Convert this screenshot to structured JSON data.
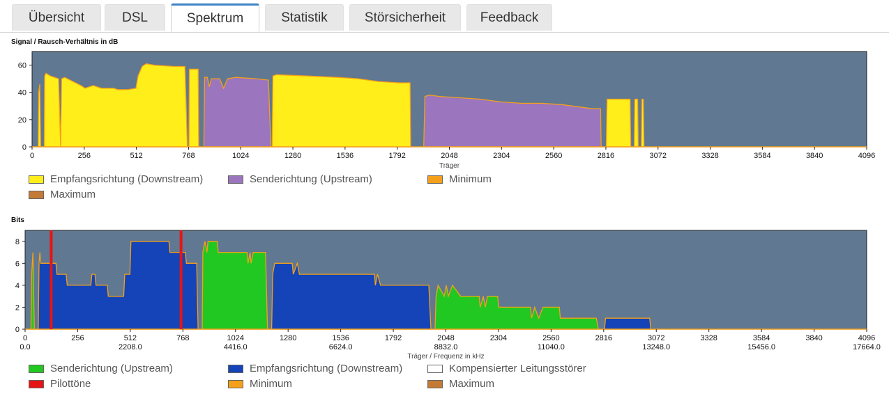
{
  "tabs": [
    {
      "label": "Übersicht",
      "active": false
    },
    {
      "label": "DSL",
      "active": false
    },
    {
      "label": "Spektrum",
      "active": true
    },
    {
      "label": "Statistik",
      "active": false
    },
    {
      "label": "Störsicherheit",
      "active": false
    },
    {
      "label": "Feedback",
      "active": false
    }
  ],
  "colors": {
    "plot_bg": "#607891",
    "downstream_snr": "#ffee1a",
    "upstream_snr": "#9b75bd",
    "minimum": "#f5a01a",
    "maximum": "#c47a36",
    "bits_up": "#21c821",
    "bits_down": "#1444b8",
    "pilot": "#e61414",
    "compensated": "#ffffff"
  },
  "chart_data": [
    {
      "type": "area",
      "title": "Signal / Rausch-Verhältnis in dB",
      "xlabel": "Träger",
      "xlim": [
        0,
        4096
      ],
      "ylim": [
        0,
        70
      ],
      "yticks": [
        0,
        20,
        40,
        60
      ],
      "xticks": [
        0,
        256,
        512,
        768,
        1024,
        1280,
        1536,
        1792,
        2048,
        2304,
        2560,
        2816,
        3072,
        3328,
        3584,
        3840,
        4096
      ],
      "legend": [
        "Empfangsrichtung (Downstream)",
        "Senderichtung (Upstream)",
        "Minimum",
        "Maximum"
      ],
      "series": [
        {
          "name": "Empfangsrichtung (Downstream)",
          "points": [
            [
              30,
              0
            ],
            [
              32,
              40
            ],
            [
              38,
              46
            ],
            [
              42,
              0
            ],
            [
              60,
              0
            ],
            [
              62,
              52
            ],
            [
              68,
              54
            ],
            [
              90,
              52
            ],
            [
              130,
              50
            ],
            [
              140,
              0
            ],
            [
              145,
              50
            ],
            [
              160,
              51
            ],
            [
              200,
              48
            ],
            [
              240,
              45
            ],
            [
              260,
              43
            ],
            [
              280,
              44
            ],
            [
              300,
              45
            ],
            [
              340,
              43
            ],
            [
              400,
              43
            ],
            [
              420,
              42
            ],
            [
              445,
              42
            ],
            [
              470,
              42
            ],
            [
              510,
              43
            ],
            [
              512,
              45
            ],
            [
              520,
              52
            ],
            [
              540,
              59
            ],
            [
              560,
              61
            ],
            [
              600,
              60
            ],
            [
              700,
              59
            ],
            [
              750,
              59
            ],
            [
              762,
              0
            ],
            [
              770,
              0
            ],
            [
              772,
              57
            ],
            [
              800,
              57
            ],
            [
              815,
              57
            ],
            [
              818,
              0
            ]
          ]
        },
        {
          "name": "Senderichtung (Upstream)",
          "points": [
            [
              843,
              0
            ],
            [
              847,
              51
            ],
            [
              860,
              51
            ],
            [
              870,
              44
            ],
            [
              880,
              50
            ],
            [
              920,
              50
            ],
            [
              940,
              43
            ],
            [
              960,
              50
            ],
            [
              1000,
              51
            ],
            [
              1100,
              50
            ],
            [
              1160,
              49
            ],
            [
              1172,
              0
            ]
          ]
        },
        {
          "name": "Empfangsrichtung (Downstream)",
          "points": [
            [
              1178,
              0
            ],
            [
              1182,
              52
            ],
            [
              1200,
              53
            ],
            [
              1350,
              52
            ],
            [
              1500,
              51
            ],
            [
              1600,
              50
            ],
            [
              1700,
              48
            ],
            [
              1800,
              47
            ],
            [
              1855,
              47
            ],
            [
              1858,
              0
            ]
          ]
        },
        {
          "name": "Senderichtung (Upstream)",
          "points": [
            [
              1922,
              0
            ],
            [
              1928,
              37
            ],
            [
              1950,
              38
            ],
            [
              2000,
              37
            ],
            [
              2100,
              36
            ],
            [
              2200,
              35
            ],
            [
              2300,
              33
            ],
            [
              2400,
              32
            ],
            [
              2500,
              32
            ],
            [
              2600,
              31
            ],
            [
              2700,
              29
            ],
            [
              2750,
              28
            ],
            [
              2790,
              28
            ],
            [
              2793,
              0
            ]
          ]
        },
        {
          "name": "Empfangsrichtung (Downstream)",
          "points": [
            [
              2818,
              0
            ],
            [
              2822,
              35
            ],
            [
              2900,
              35
            ],
            [
              2935,
              35
            ],
            [
              2938,
              0
            ],
            [
              2955,
              0
            ],
            [
              2958,
              35
            ],
            [
              2972,
              35
            ],
            [
              2975,
              0
            ],
            [
              2990,
              0
            ],
            [
              2993,
              35
            ],
            [
              3000,
              35
            ],
            [
              3003,
              0
            ]
          ]
        }
      ]
    },
    {
      "type": "area",
      "title": "Bits",
      "xlabel": "Träger / Frequenz in kHz",
      "xlim": [
        0,
        4096
      ],
      "ylim": [
        0,
        9
      ],
      "yticks": [
        0,
        2,
        4,
        6,
        8
      ],
      "xticks": [
        0,
        256,
        512,
        768,
        1024,
        1280,
        1536,
        1792,
        2048,
        2304,
        2560,
        2816,
        3072,
        3328,
        3584,
        3840,
        4096
      ],
      "freq_ticks": [
        "0.0",
        "2208.0",
        "4416.0",
        "6624.0",
        "8832.0",
        "11040.0",
        "13248.0",
        "15456.0",
        "17664.0"
      ],
      "legend": [
        "Senderichtung (Upstream)",
        "Empfangsrichtung (Downstream)",
        "Kompensierter Leitungsstörer",
        "Pilottöne",
        "Minimum",
        "Maximum"
      ],
      "series": [
        {
          "name": "Senderichtung (Upstream)",
          "points": [
            [
              28,
              0
            ],
            [
              32,
              5
            ],
            [
              38,
              7
            ],
            [
              45,
              0
            ]
          ]
        },
        {
          "name": "Empfangsrichtung (Downstream)",
          "points": [
            [
              64,
              0
            ],
            [
              68,
              6
            ],
            [
              72,
              7
            ],
            [
              76,
              6
            ],
            [
              150,
              6
            ],
            [
              155,
              5
            ],
            [
              200,
              5
            ],
            [
              205,
              4
            ],
            [
              320,
              4
            ],
            [
              325,
              5
            ],
            [
              340,
              5
            ],
            [
              345,
              4
            ],
            [
              400,
              4
            ],
            [
              405,
              3
            ],
            [
              480,
              3
            ],
            [
              485,
              5
            ],
            [
              510,
              5
            ],
            [
              515,
              8
            ],
            [
              700,
              8
            ],
            [
              705,
              7
            ],
            [
              760,
              7
            ],
            [
              780,
              7
            ],
            [
              785,
              6
            ],
            [
              835,
              6
            ],
            [
              842,
              0
            ]
          ]
        },
        {
          "name": "Senderichtung (Upstream)",
          "points": [
            [
              862,
              0
            ],
            [
              865,
              7
            ],
            [
              875,
              8
            ],
            [
              885,
              7
            ],
            [
              890,
              8
            ],
            [
              935,
              8
            ],
            [
              940,
              7
            ],
            [
              1080,
              7
            ],
            [
              1085,
              6
            ],
            [
              1095,
              7
            ],
            [
              1100,
              6
            ],
            [
              1110,
              7
            ],
            [
              1170,
              7
            ],
            [
              1180,
              0
            ]
          ]
        },
        {
          "name": "Empfangsrichtung (Downstream)",
          "points": [
            [
              1200,
              0
            ],
            [
              1205,
              5
            ],
            [
              1215,
              6
            ],
            [
              1300,
              6
            ],
            [
              1305,
              5
            ],
            [
              1325,
              6
            ],
            [
              1335,
              5
            ],
            [
              1700,
              5
            ],
            [
              1705,
              4
            ],
            [
              1715,
              5
            ],
            [
              1730,
              4
            ],
            [
              1965,
              4
            ],
            [
              1975,
              0
            ]
          ]
        },
        {
          "name": "Senderichtung (Upstream)",
          "points": [
            [
              1995,
              0
            ],
            [
              2000,
              3
            ],
            [
              2010,
              4
            ],
            [
              2040,
              3
            ],
            [
              2050,
              4
            ],
            [
              2060,
              3
            ],
            [
              2080,
              4
            ],
            [
              2120,
              3
            ],
            [
              2210,
              3
            ],
            [
              2215,
              2
            ],
            [
              2230,
              3
            ],
            [
              2240,
              2
            ],
            [
              2250,
              3
            ],
            [
              2300,
              3
            ],
            [
              2305,
              2
            ],
            [
              2460,
              2
            ],
            [
              2465,
              1
            ],
            [
              2480,
              2
            ],
            [
              2500,
              1
            ],
            [
              2520,
              2
            ],
            [
              2600,
              2
            ],
            [
              2605,
              1
            ],
            [
              2780,
              1
            ],
            [
              2790,
              0
            ]
          ]
        },
        {
          "name": "Empfangsrichtung (Downstream)",
          "points": [
            [
              2820,
              0
            ],
            [
              2825,
              1
            ],
            [
              3040,
              1
            ],
            [
              3045,
              0
            ]
          ]
        }
      ],
      "pilots": [
        127,
        759
      ]
    }
  ]
}
